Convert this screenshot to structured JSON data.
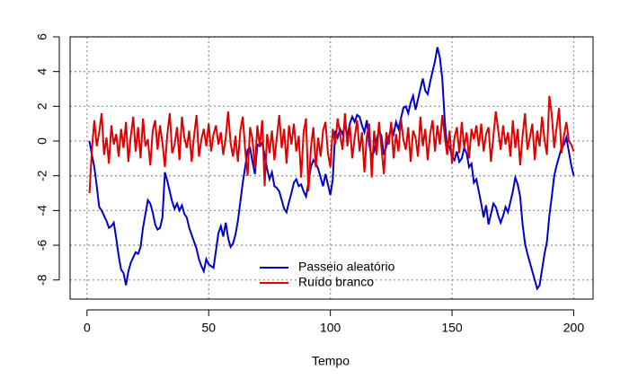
{
  "chart_data": {
    "type": "line",
    "xlabel": "Tempo",
    "x": [
      1,
      2,
      3,
      4,
      5,
      6,
      7,
      8,
      9,
      10,
      11,
      12,
      13,
      14,
      15,
      16,
      17,
      18,
      19,
      20,
      21,
      22,
      23,
      24,
      25,
      26,
      27,
      28,
      29,
      30,
      31,
      32,
      33,
      34,
      35,
      36,
      37,
      38,
      39,
      40,
      41,
      42,
      43,
      44,
      45,
      46,
      47,
      48,
      49,
      50,
      51,
      52,
      53,
      54,
      55,
      56,
      57,
      58,
      59,
      60,
      61,
      62,
      63,
      64,
      65,
      66,
      67,
      68,
      69,
      70,
      71,
      72,
      73,
      74,
      75,
      76,
      77,
      78,
      79,
      80,
      81,
      82,
      83,
      84,
      85,
      86,
      87,
      88,
      89,
      90,
      91,
      92,
      93,
      94,
      95,
      96,
      97,
      98,
      99,
      100,
      101,
      102,
      103,
      104,
      105,
      106,
      107,
      108,
      109,
      110,
      111,
      112,
      113,
      114,
      115,
      116,
      117,
      118,
      119,
      120,
      121,
      122,
      123,
      124,
      125,
      126,
      127,
      128,
      129,
      130,
      131,
      132,
      133,
      134,
      135,
      136,
      137,
      138,
      139,
      140,
      141,
      142,
      143,
      144,
      145,
      146,
      147,
      148,
      149,
      150,
      151,
      152,
      153,
      154,
      155,
      156,
      157,
      158,
      159,
      160,
      161,
      162,
      163,
      164,
      165,
      166,
      167,
      168,
      169,
      170,
      171,
      172,
      173,
      174,
      175,
      176,
      177,
      178,
      179,
      180,
      181,
      182,
      183,
      184,
      185,
      186,
      187,
      188,
      189,
      190,
      191,
      192,
      193,
      194,
      195,
      196,
      197,
      198,
      199,
      200
    ],
    "series": [
      {
        "name": "Passeio aleatório",
        "color": "#0000cd",
        "values": [
          0.0,
          -0.8,
          -1.5,
          -2.6,
          -3.8,
          -4.0,
          -4.3,
          -4.6,
          -5.0,
          -4.9,
          -4.7,
          -5.6,
          -6.6,
          -7.4,
          -7.6,
          -8.3,
          -7.5,
          -7.0,
          -6.7,
          -6.4,
          -6.5,
          -6.1,
          -5.0,
          -4.2,
          -3.4,
          -3.6,
          -4.1,
          -4.8,
          -5.1,
          -5.0,
          -4.4,
          -1.8,
          -2.3,
          -2.9,
          -3.5,
          -3.9,
          -3.6,
          -4.0,
          -3.7,
          -4.2,
          -4.4,
          -5.0,
          -5.4,
          -5.8,
          -6.2,
          -6.8,
          -7.2,
          -7.5,
          -6.8,
          -7.1,
          -7.2,
          -7.3,
          -6.3,
          -5.3,
          -4.9,
          -5.5,
          -4.7,
          -5.6,
          -6.1,
          -5.9,
          -5.4,
          -4.6,
          -3.5,
          -2.4,
          -1.5,
          -0.5,
          -0.4,
          -1.2,
          -1.9,
          -0.2,
          -0.3,
          -0.1,
          -0.8,
          -1.6,
          -2.2,
          -1.8,
          -2.6,
          -2.7,
          -2.9,
          -3.4,
          -3.9,
          -4.1,
          -3.5,
          -3.0,
          -2.4,
          -2.2,
          -2.6,
          -2.5,
          -2.9,
          -3.2,
          -2.4,
          -1.5,
          -1.1,
          -1.3,
          -1.6,
          -2.1,
          -2.6,
          -1.9,
          -2.5,
          -3.1,
          -2.2,
          0.6,
          0.2,
          0.7,
          0.4,
          0.9,
          0.3,
          1.0,
          1.4,
          1.1,
          1.5,
          1.4,
          0.9,
          0.5,
          1.2,
          -0.2,
          -0.9,
          -0.6,
          0.1,
          0.6,
          0.3,
          -0.8,
          -0.3,
          0.2,
          0.8,
          0.4,
          1.1,
          0.7,
          1.3,
          1.9,
          2.0,
          1.6,
          2.2,
          2.6,
          1.8,
          2.4,
          3.0,
          3.6,
          2.9,
          2.7,
          3.4,
          4.0,
          4.6,
          5.4,
          4.8,
          3.6,
          1.2,
          -0.4,
          -0.3,
          -0.9,
          -1.1,
          -0.6,
          -1.2,
          -1.0,
          -0.4,
          -0.7,
          -1.5,
          -1.3,
          -2.4,
          -2.2,
          -2.9,
          -3.6,
          -4.4,
          -3.7,
          -4.8,
          -4.2,
          -3.6,
          -3.8,
          -4.3,
          -4.7,
          -4.3,
          -3.8,
          -4.1,
          -3.5,
          -2.9,
          -2.1,
          -2.5,
          -3.2,
          -4.8,
          -5.9,
          -6.5,
          -7.0,
          -7.5,
          -8.0,
          -8.5,
          -8.3,
          -7.4,
          -6.5,
          -5.8,
          -4.3,
          -3.2,
          -2.0,
          -1.4,
          -0.9,
          -0.4,
          -0.2,
          0.2,
          -0.6,
          -1.4,
          -2.0
        ]
      },
      {
        "name": "Ruído branco",
        "color": "#e00000",
        "values": [
          -3.0,
          -0.5,
          1.2,
          -0.3,
          0.5,
          1.6,
          -0.8,
          0.2,
          -1.3,
          0.9,
          -0.2,
          0.4,
          -0.9,
          0.7,
          -0.4,
          1.1,
          -1.2,
          0.3,
          1.4,
          -0.6,
          0.8,
          -1.0,
          1.3,
          -0.3,
          0.1,
          -1.4,
          0.6,
          1.2,
          -0.5,
          0.9,
          -0.1,
          -1.5,
          0.4,
          1.6,
          -0.7,
          -0.2,
          0.8,
          -1.1,
          1.4,
          0.2,
          -0.4,
          0.6,
          -1.2,
          0.3,
          1.5,
          -0.9,
          0.1,
          0.7,
          -0.3,
          1.0,
          -0.6,
          0.4,
          0.9,
          -0.2,
          0.5,
          -0.8,
          0.2,
          1.7,
          -0.1,
          -0.9,
          0.3,
          -1.2,
          0.6,
          1.4,
          -0.5,
          -2.0,
          0.8,
          0.1,
          -1.6,
          0.9,
          -0.3,
          1.2,
          -2.6,
          0.4,
          -0.7,
          0.6,
          -1.1,
          0.2,
          1.5,
          -0.4,
          0.7,
          -1.3,
          0.9,
          -0.2,
          1.0,
          -0.6,
          0.3,
          -2.1,
          0.5,
          1.3,
          -2.9,
          -0.4,
          0.8,
          -1.5,
          0.2,
          -0.9,
          0.6,
          1.1,
          -0.7,
          -1.5,
          0.7,
          -0.2,
          1.3,
          0.4,
          -0.5,
          1.6,
          -0.3,
          0.9,
          -1.0,
          0.2,
          1.2,
          -0.6,
          0.5,
          -1.8,
          0.3,
          1.0,
          -2.1,
          0.6,
          -0.8,
          1.1,
          -0.4,
          -1.9,
          0.5,
          -0.2,
          1.1,
          -1.0,
          0.4,
          -0.6,
          1.3,
          0.1,
          -0.5,
          0.8,
          -1.2,
          0.6,
          0.2,
          -0.9,
          1.4,
          -0.3,
          0.7,
          -1.1,
          0.4,
          1.2,
          -0.6,
          0.9,
          -0.2,
          1.5,
          0.3,
          -0.8,
          0.6,
          -1.3,
          0.2,
          0.8,
          -0.7,
          1.1,
          -0.4,
          0.5,
          -1.0,
          0.7,
          0.1,
          0.9,
          -0.3,
          1.0,
          -0.6,
          0.4,
          0.8,
          -1.2,
          0.3,
          1.7,
          0.6,
          -0.5,
          0.9,
          -0.2,
          0.5,
          -0.9,
          1.2,
          -0.4,
          0.7,
          -1.4,
          0.3,
          1.6,
          -0.5,
          0.2,
          1.0,
          -1.1,
          0.6,
          -0.3,
          1.4,
          0.1,
          -0.8,
          2.6,
          1.5,
          -0.4,
          0.8,
          1.9,
          -0.7,
          0.3,
          1.1,
          0.0,
          -0.2,
          -0.6
        ]
      }
    ],
    "xlim": [
      -6.96,
      207.96
    ],
    "xticks": [
      0,
      50,
      100,
      150,
      200
    ],
    "ylim": [
      -9.1,
      6.0
    ],
    "yticks": [
      -8,
      -6,
      -4,
      -2,
      0,
      2,
      4,
      6
    ],
    "grid": true,
    "legend": "bottom"
  }
}
